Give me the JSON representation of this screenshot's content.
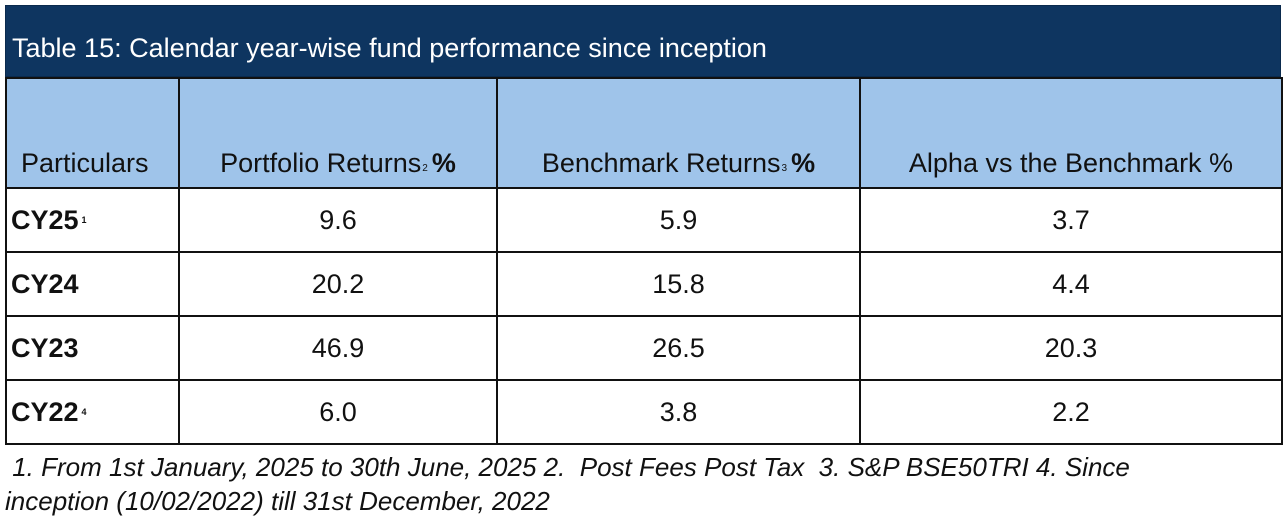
{
  "table": {
    "title": "Table 15: Calendar year-wise fund performance since inception",
    "headers": {
      "particulars": "Particulars",
      "portfolio": "Portfolio Returns",
      "portfolio_sup": "2",
      "portfolio_pct": "%",
      "benchmark": "Benchmark Returns",
      "benchmark_sup": "3",
      "benchmark_pct": "%",
      "alpha": "Alpha vs the Benchmark %"
    },
    "rows": [
      {
        "label": "CY25",
        "sup": "1",
        "portfolio": "9.6",
        "benchmark": "5.9",
        "alpha": "3.7"
      },
      {
        "label": "CY24",
        "sup": "",
        "portfolio": "20.2",
        "benchmark": "15.8",
        "alpha": "4.4"
      },
      {
        "label": "CY23",
        "sup": "",
        "portfolio": "46.9",
        "benchmark": "26.5",
        "alpha": "20.3"
      },
      {
        "label": "CY22",
        "sup": "4",
        "portfolio": "6.0",
        "benchmark": "3.8",
        "alpha": "2.2"
      }
    ]
  },
  "footnote": {
    "line1": " 1. From 1st January, 2025 to 30th June, 2025 2.  Post Fees Post Tax  3. S&P BSE50TRI 4. Since",
    "line2": "inception (10/02/2022) till 31st December, 2022"
  },
  "colors": {
    "title_bar": "#0e3560",
    "header_fill": "#9fc4ea"
  }
}
